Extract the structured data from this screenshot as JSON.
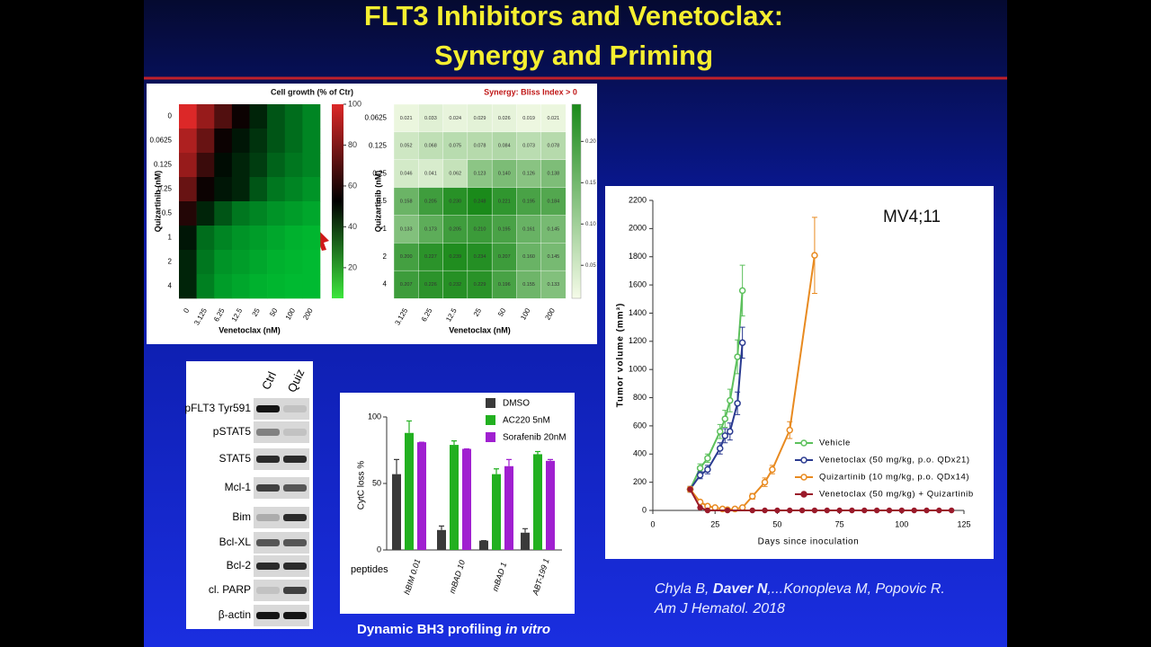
{
  "slide": {
    "title_line1": "FLT3 Inhibitors and Venetoclax:",
    "title_line2": "Synergy and Priming",
    "caption": {
      "text": "Dynamic BH3 profiling",
      "italic": "in vitro"
    },
    "citation": {
      "part1": "Chyla B,",
      "bold": "Daver N",
      "part2": ",...Konopleva M, Popovic R.",
      "line2": "Am J Hematol. 2018"
    }
  },
  "blot": {
    "columns": [
      "Ctrl",
      "Quiz"
    ],
    "rows": [
      "pFLT3 Tyr591",
      "pSTAT5",
      "STAT5",
      "Mcl-1",
      "Bim",
      "Bcl-XL",
      "Bcl-2",
      "cl. PARP",
      "β-actin"
    ]
  },
  "chart_data": [
    {
      "type": "heatmap",
      "title": "Cell growth (% of Ctr)",
      "x_label": "Venetoclax (nM)",
      "y_label": "Quizartinib (nM)",
      "categories": [
        "0",
        "3.125",
        "6.25",
        "12.5",
        "25",
        "50",
        "100",
        "200"
      ],
      "rows": [
        "0",
        "0.0625",
        "0.125",
        "0.25",
        "0.5",
        "1",
        "2",
        "4"
      ],
      "values": [
        [
          100,
          85,
          70,
          55,
          45,
          35,
          30,
          25
        ],
        [
          90,
          75,
          55,
          48,
          42,
          35,
          30,
          25
        ],
        [
          85,
          65,
          50,
          45,
          40,
          32,
          28,
          25
        ],
        [
          75,
          55,
          48,
          45,
          35,
          28,
          25,
          22
        ],
        [
          60,
          45,
          35,
          28,
          25,
          22,
          20,
          18
        ],
        [
          48,
          30,
          25,
          22,
          20,
          18,
          16,
          15
        ],
        [
          45,
          28,
          22,
          20,
          18,
          16,
          15,
          14
        ],
        [
          45,
          26,
          20,
          18,
          16,
          15,
          14,
          14
        ]
      ],
      "zlim": [
        5,
        100
      ],
      "zticks": [
        20,
        40,
        60,
        80,
        100
      ]
    },
    {
      "type": "heatmap",
      "title": "Synergy: Bliss Index > 0",
      "x_label": "Venetoclax (nM)",
      "y_label": "Quizartinib (nM)",
      "categories": [
        "3.125",
        "6.25",
        "12.5",
        "25",
        "50",
        "100",
        "200"
      ],
      "rows": [
        "0.0625",
        "0.125",
        "0.25",
        "0.5",
        "1",
        "2",
        "4"
      ],
      "values": [
        [
          0.021,
          0.033,
          0.024,
          0.029,
          0.026,
          0.019,
          0.021
        ],
        [
          0.052,
          0.068,
          0.075,
          0.078,
          0.084,
          0.073,
          0.078
        ],
        [
          0.046,
          0.041,
          0.062,
          0.123,
          0.14,
          0.126,
          0.138
        ],
        [
          0.158,
          0.205,
          0.23,
          0.248,
          0.221,
          0.195,
          0.184
        ],
        [
          0.133,
          0.173,
          0.205,
          0.21,
          0.195,
          0.161,
          0.145
        ],
        [
          0.2,
          0.227,
          0.239,
          0.234,
          0.207,
          0.16,
          0.145
        ],
        [
          0.207,
          0.226,
          0.232,
          0.229,
          0.196,
          0.155,
          0.133
        ]
      ],
      "value_labels": [
        [
          "0.021",
          "0.033",
          "0.024",
          "0.029",
          "0.026",
          "0.019",
          "0.021"
        ],
        [
          "0.052",
          "0.068",
          "0.075",
          "0.078",
          "0.084",
          "0.073",
          "0.078"
        ],
        [
          "0.046",
          "0.041",
          "0.062",
          "0.123",
          "0.140",
          "0.126",
          "0.138"
        ],
        [
          "0.158",
          "0.205",
          "0.230",
          "0.248",
          "0.221",
          "0.195",
          "0.184"
        ],
        [
          "0.133",
          "0.173",
          "0.205",
          "0.210",
          "0.195",
          "0.161",
          "0.145"
        ],
        [
          "0.200",
          "0.227",
          "0.239",
          "0.234",
          "0.207",
          "0.160",
          "0.145"
        ],
        [
          "0.207",
          "0.226",
          "0.232",
          "0.229",
          "0.196",
          "0.155",
          "0.133"
        ]
      ],
      "zlim": [
        0.01,
        0.245
      ],
      "zticks": [
        0.05,
        {
          "value": 0.1,
          "label": "0.10"
        },
        0.15,
        {
          "value": 0.2,
          "label": "0.20"
        }
      ]
    },
    {
      "type": "bar",
      "y_label": "CytC loss %",
      "x_label": "peptides",
      "categories": [
        "hBIM 0.01",
        "mBAD 10",
        "mBAD 1",
        "ABT-199 1"
      ],
      "series": [
        {
          "name": "DMSO",
          "color": "#3a3a3a",
          "values": [
            57,
            15,
            7,
            13
          ],
          "errors": [
            11,
            3,
            0,
            3
          ]
        },
        {
          "name": "AC220 5nM",
          "color": "#22b020",
          "values": [
            88,
            79,
            57,
            72
          ],
          "errors": [
            9,
            3,
            4,
            2
          ]
        },
        {
          "name": "Sorafenib 20nM",
          "color": "#a020d0",
          "values": [
            81,
            76,
            63,
            67
          ],
          "errors": [
            0,
            0,
            5,
            1
          ]
        }
      ],
      "ylim": [
        0,
        100
      ],
      "yticks": [
        0,
        50,
        100
      ]
    },
    {
      "type": "line",
      "annotation": "MV4;11",
      "x_label": "Days since inoculation",
      "y_label": "Tumor volume (mm³)",
      "series": [
        {
          "name": "Vehicle",
          "color": "#5cc05c",
          "x": [
            15,
            19,
            22,
            27,
            29,
            31,
            34,
            36
          ],
          "values": [
            150,
            300,
            370,
            560,
            650,
            780,
            1090,
            1560
          ],
          "errors": [
            20,
            30,
            30,
            50,
            60,
            80,
            120,
            180
          ]
        },
        {
          "name": "Venetoclax (50 mg/kg, p.o. QDx21)",
          "color": "#2a3a90",
          "x": [
            15,
            19,
            22,
            27,
            29,
            31,
            34,
            36
          ],
          "values": [
            150,
            250,
            290,
            440,
            530,
            560,
            760,
            1190
          ],
          "errors": [
            20,
            25,
            30,
            40,
            50,
            60,
            80,
            110
          ]
        },
        {
          "name": "Quizartinib (10 mg/kg, p.o. QDx14)",
          "color": "#e88a20",
          "x": [
            15,
            19,
            22,
            25,
            28,
            30,
            33,
            36,
            40,
            45,
            48,
            55,
            65
          ],
          "values": [
            150,
            60,
            30,
            20,
            10,
            5,
            10,
            20,
            100,
            200,
            290,
            570,
            1810
          ],
          "errors": [
            20,
            10,
            10,
            5,
            5,
            5,
            5,
            10,
            20,
            30,
            30,
            60,
            270
          ]
        },
        {
          "name": "Venetoclax (50 mg/kg) + Quizartinib",
          "color": "#9a1a2a",
          "x": [
            15,
            19,
            22,
            30,
            40,
            45,
            50,
            55,
            60,
            65,
            70,
            75,
            80,
            85,
            90,
            95,
            100,
            105,
            110,
            115,
            120
          ],
          "values": [
            150,
            20,
            0,
            0,
            0,
            0,
            0,
            0,
            0,
            0,
            0,
            0,
            0,
            0,
            0,
            0,
            0,
            0,
            0,
            0,
            0
          ]
        }
      ],
      "xlim": [
        0,
        125
      ],
      "xticks": [
        0,
        25,
        50,
        75,
        100,
        125
      ],
      "ylim": [
        0,
        2200
      ],
      "yticks": [
        0,
        200,
        400,
        600,
        800,
        1000,
        1200,
        1400,
        1600,
        1800,
        2000,
        2200
      ]
    }
  ]
}
